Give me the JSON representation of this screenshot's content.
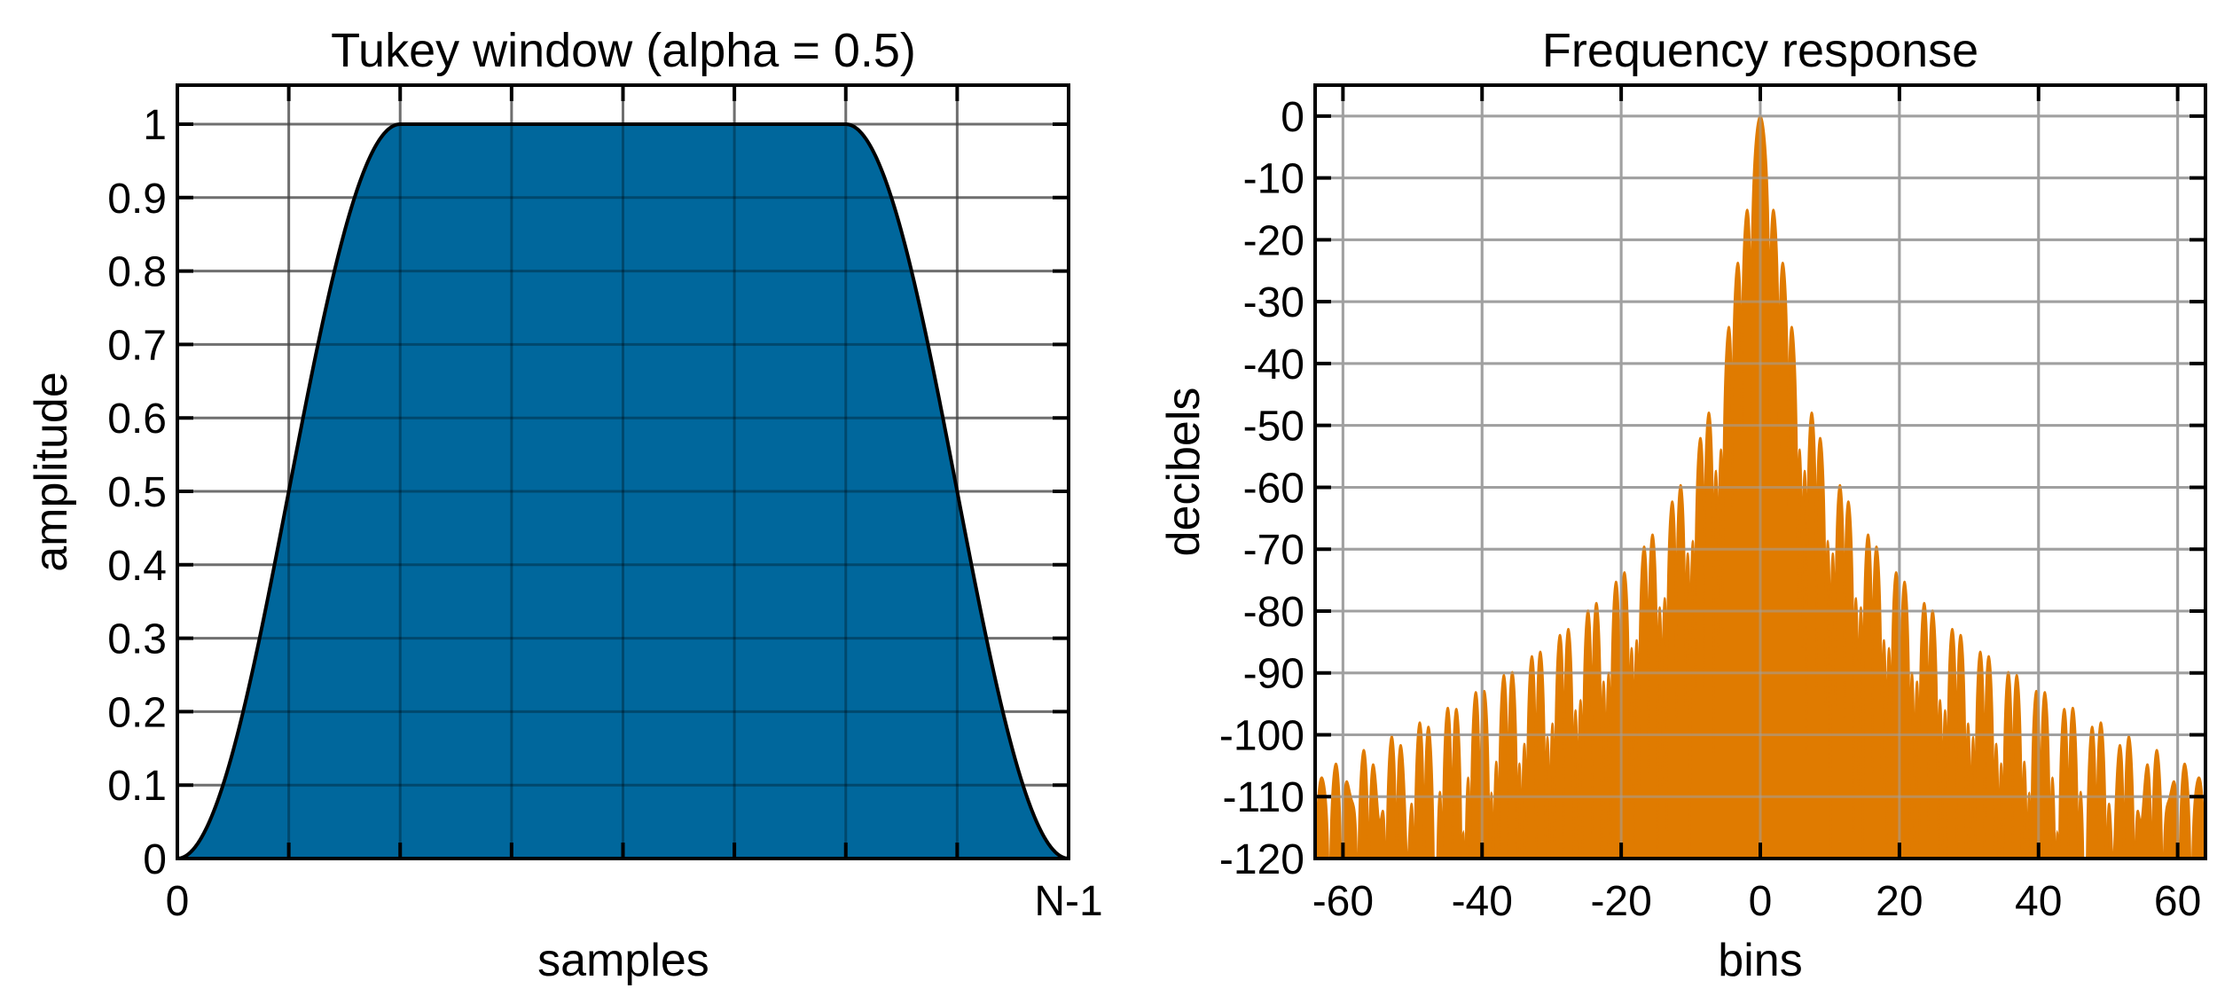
{
  "colors": {
    "window_fill": "#00679c",
    "response_fill": "#e07b00",
    "grid": "#a0a0a0"
  },
  "chart_data": [
    {
      "type": "area",
      "title": "Tukey window (alpha = 0.5)",
      "xlabel": "samples",
      "ylabel": "amplitude",
      "alpha": 0.5,
      "x_range": [
        0,
        1
      ],
      "ylim": [
        0,
        1
      ],
      "x_ticks": [
        {
          "value": 0,
          "label": "0"
        },
        {
          "value": 1,
          "label": "N-1"
        }
      ],
      "x_grid": [
        0.125,
        0.25,
        0.375,
        0.5,
        0.625,
        0.75,
        0.875
      ],
      "y_ticks": [
        {
          "value": 0,
          "label": "0"
        },
        {
          "value": 0.1,
          "label": "0.1"
        },
        {
          "value": 0.2,
          "label": "0.2"
        },
        {
          "value": 0.3,
          "label": "0.3"
        },
        {
          "value": 0.4,
          "label": "0.4"
        },
        {
          "value": 0.5,
          "label": "0.5"
        },
        {
          "value": 0.6,
          "label": "0.6"
        },
        {
          "value": 0.7,
          "label": "0.7"
        },
        {
          "value": 0.8,
          "label": "0.8"
        },
        {
          "value": 0.9,
          "label": "0.9"
        },
        {
          "value": 1,
          "label": "1"
        }
      ],
      "grid": true
    },
    {
      "type": "area",
      "title": "Frequency response",
      "xlabel": "bins",
      "ylabel": "decibels",
      "xlim": [
        -64,
        64
      ],
      "ylim": [
        -120,
        5
      ],
      "x_ticks": [
        {
          "value": -60,
          "label": "-60"
        },
        {
          "value": -40,
          "label": "-40"
        },
        {
          "value": -20,
          "label": "-20"
        },
        {
          "value": 0,
          "label": "0"
        },
        {
          "value": 20,
          "label": "20"
        },
        {
          "value": 40,
          "label": "40"
        },
        {
          "value": 60,
          "label": "60"
        }
      ],
      "y_ticks": [
        {
          "value": 0,
          "label": "0"
        },
        {
          "value": -10,
          "label": "-10"
        },
        {
          "value": -20,
          "label": "-20"
        },
        {
          "value": -30,
          "label": "-30"
        },
        {
          "value": -40,
          "label": "-40"
        },
        {
          "value": -50,
          "label": "-50"
        },
        {
          "value": -60,
          "label": "-60"
        },
        {
          "value": -70,
          "label": "-70"
        },
        {
          "value": -80,
          "label": "-80"
        },
        {
          "value": -90,
          "label": "-90"
        },
        {
          "value": -100,
          "label": "-100"
        },
        {
          "value": -110,
          "label": "-110"
        },
        {
          "value": -120,
          "label": "-120"
        }
      ],
      "grid": true
    }
  ]
}
